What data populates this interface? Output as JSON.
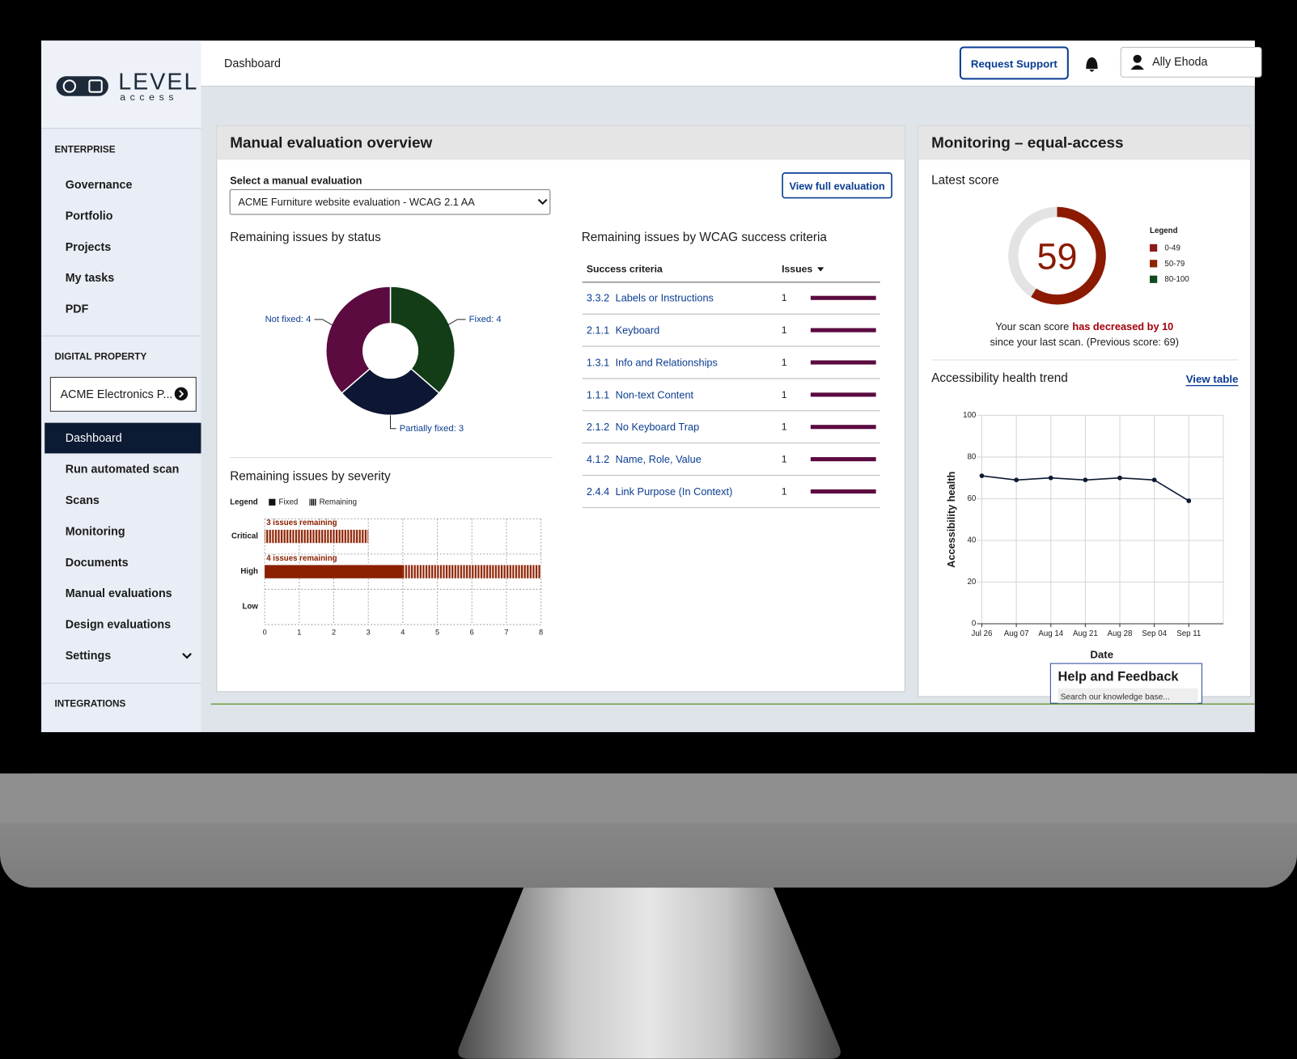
{
  "logo": {
    "name": "LEVEL",
    "tagline": "access"
  },
  "header": {
    "title": "Dashboard",
    "request_support": "Request Support",
    "user": "Ally Ehoda"
  },
  "sidebar": {
    "enterprise": {
      "heading": "ENTERPRISE",
      "items": [
        "Governance",
        "Portfolio",
        "Projects",
        "My tasks",
        "PDF"
      ]
    },
    "digital_property": {
      "heading": "DIGITAL PROPERTY",
      "property": "ACME Electronics P...",
      "items": [
        "Dashboard",
        "Run automated scan",
        "Scans",
        "Monitoring",
        "Documents",
        "Manual evaluations",
        "Design evaluations",
        "Settings"
      ],
      "active": 0
    },
    "integrations": "INTEGRATIONS"
  },
  "manual_evaluation": {
    "title": "Manual evaluation overview",
    "select_label": "Select a manual evaluation",
    "selected": "ACME Furniture website evaluation - WCAG 2.1 AA",
    "view_button": "View full evaluation",
    "status_heading": "Remaining issues by status",
    "severity_heading": "Remaining issues by severity",
    "criteria_heading": "Remaining issues by WCAG success criteria",
    "criteria_columns": [
      "Success criteria",
      "Issues"
    ],
    "criteria_rows": [
      {
        "code": "3.3.2",
        "name": "Labels or Instructions",
        "issues": 1
      },
      {
        "code": "2.1.1",
        "name": "Keyboard",
        "issues": 1
      },
      {
        "code": "1.3.1",
        "name": "Info and Relationships",
        "issues": 1
      },
      {
        "code": "1.1.1",
        "name": "Non-text Content",
        "issues": 1
      },
      {
        "code": "2.1.2",
        "name": "No Keyboard Trap",
        "issues": 1
      },
      {
        "code": "4.1.2",
        "name": "Name, Role, Value",
        "issues": 1
      },
      {
        "code": "2.4.4",
        "name": "Link Purpose (In Context)",
        "issues": 1
      }
    ],
    "criteria_bar_color": "#5b0b3f"
  },
  "monitoring": {
    "title": "Monitoring – equal-access",
    "score_label": "Latest score",
    "change_prefix": "Your scan score",
    "change": "has decreased by 10",
    "change_suffix": "since your last scan. (Previous score: 69)",
    "change_color": "#a3000b",
    "trend_heading": "Accessibility health trend",
    "view_table": "View table"
  },
  "help": {
    "title": "Help and Feedback",
    "search_placeholder": "Search our knowledge base..."
  },
  "chart_data": [
    {
      "type": "donut",
      "values": [
        4,
        3,
        4
      ],
      "value_labels": [
        "Fixed: 4",
        "Partially fixed: 3",
        "Not fixed: 4"
      ],
      "colors": [
        "#123d17",
        "#0d1633",
        "#5b0b3f"
      ]
    },
    {
      "type": "bar",
      "orientation": "horizontal",
      "stacked": true,
      "legend_title": "Legend",
      "legend_swatch_color": "#111111",
      "categories": [
        "Critical",
        "High",
        "Low"
      ],
      "series": [
        {
          "name": "Fixed",
          "color": "#8b2000",
          "values": [
            0,
            4,
            0
          ]
        },
        {
          "name": "Remaining",
          "color": "#8b2000",
          "pattern": "striped",
          "values": [
            3,
            4,
            0
          ],
          "value_labels": [
            "3 issues remaining",
            "4 issues remaining",
            null
          ]
        }
      ],
      "xlim": [
        0,
        8
      ],
      "xticks": [
        0,
        1,
        2,
        3,
        4,
        5,
        6,
        7,
        8
      ],
      "grid": true
    },
    {
      "type": "line",
      "x_label": "Date",
      "y_label": "Accessibility health",
      "categories": [
        "Jul 26",
        "Aug 07",
        "Aug 14",
        "Aug 21",
        "Aug 28",
        "Sep 04",
        "Sep 11"
      ],
      "values": [
        71,
        69,
        70,
        69,
        70,
        69,
        59
      ],
      "color": "#0c1a33",
      "ylim": [
        0,
        100
      ],
      "yticks": [
        0,
        20,
        40,
        60,
        80,
        100
      ],
      "grid": true
    },
    {
      "type": "gauge",
      "value": 59,
      "ylim": [
        0,
        100
      ],
      "color": "#8b1a00",
      "track_color": "#e3e3e3",
      "legend_title": "Legend",
      "legend": [
        {
          "label": "0-49",
          "color": "#8b1a1a"
        },
        {
          "label": "50-79",
          "color": "#8b2500"
        },
        {
          "label": "80-100",
          "color": "#0d4a1e"
        }
      ]
    }
  ]
}
